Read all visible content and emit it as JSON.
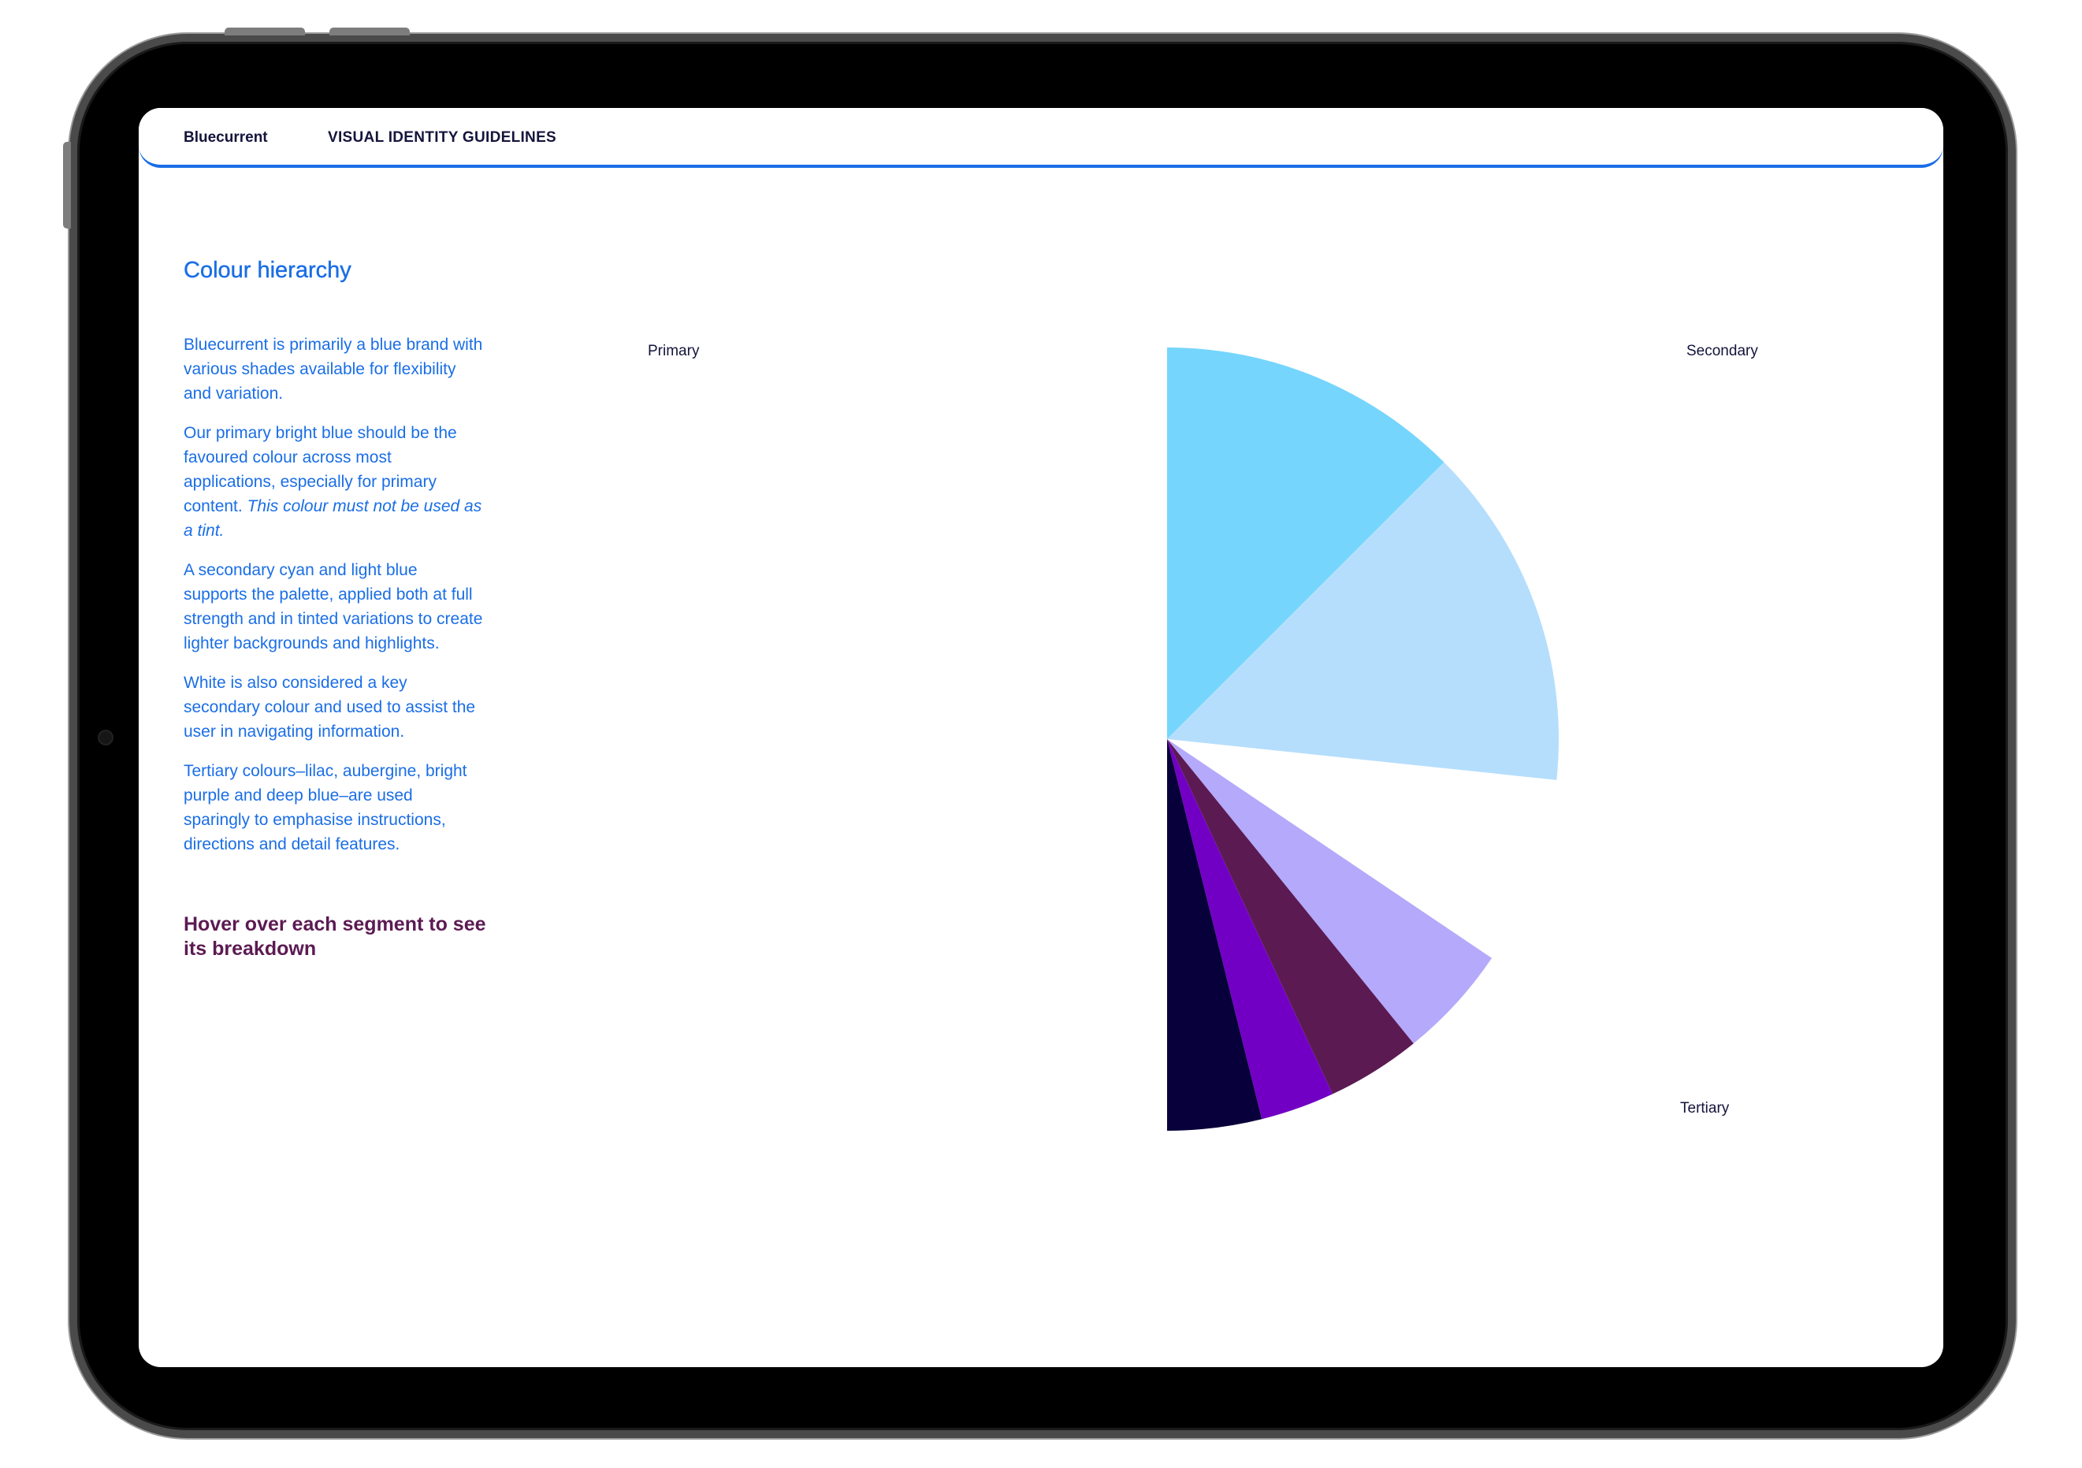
{
  "header": {
    "brand": "Bluecurrent",
    "title": "VISUAL IDENTITY GUIDELINES"
  },
  "page": {
    "heading": "Colour hierarchy",
    "paragraphs": [
      "Bluecurrent is primarily a blue brand with various shades available for flexibility and variation.",
      "Our primary bright blue should be the favoured colour across most applications, especially for primary content.",
      "A secondary cyan and light blue supports the palette, applied both at full strength and in tinted variations to create lighter backgrounds and highlights.",
      "White is also considered a key secondary colour and used to assist the user in navigating information.",
      "Tertiary colours–lilac, aubergine, bright purple and deep blue–are used sparingly to emphasise instructions, directions and detail features."
    ],
    "paragraph2_italic": "This colour must not be used as a tint.",
    "hover_note": "Hover over each segment to see its breakdown"
  },
  "chart_labels": {
    "primary": "Primary",
    "secondary": "Secondary",
    "tertiary": "Tertiary"
  },
  "colors": {
    "accent": "#1a6ee6",
    "heading_text": "#14143c",
    "hover_note": "#5c1a52"
  },
  "chart_data": {
    "type": "pie",
    "segments": [
      {
        "start_deg": 0,
        "end_deg": 45,
        "color": "#75d5fd"
      },
      {
        "start_deg": 45,
        "end_deg": 96,
        "color": "#b5defd"
      },
      {
        "start_deg": 96,
        "end_deg": 124,
        "color": "#ffffff"
      },
      {
        "start_deg": 124,
        "end_deg": 141,
        "color": "#b4a9fb"
      },
      {
        "start_deg": 141,
        "end_deg": 155,
        "color": "#5c1a52"
      },
      {
        "start_deg": 155,
        "end_deg": 166,
        "color": "#7200c4"
      },
      {
        "start_deg": 166,
        "end_deg": 180,
        "color": "#08003a"
      }
    ]
  }
}
